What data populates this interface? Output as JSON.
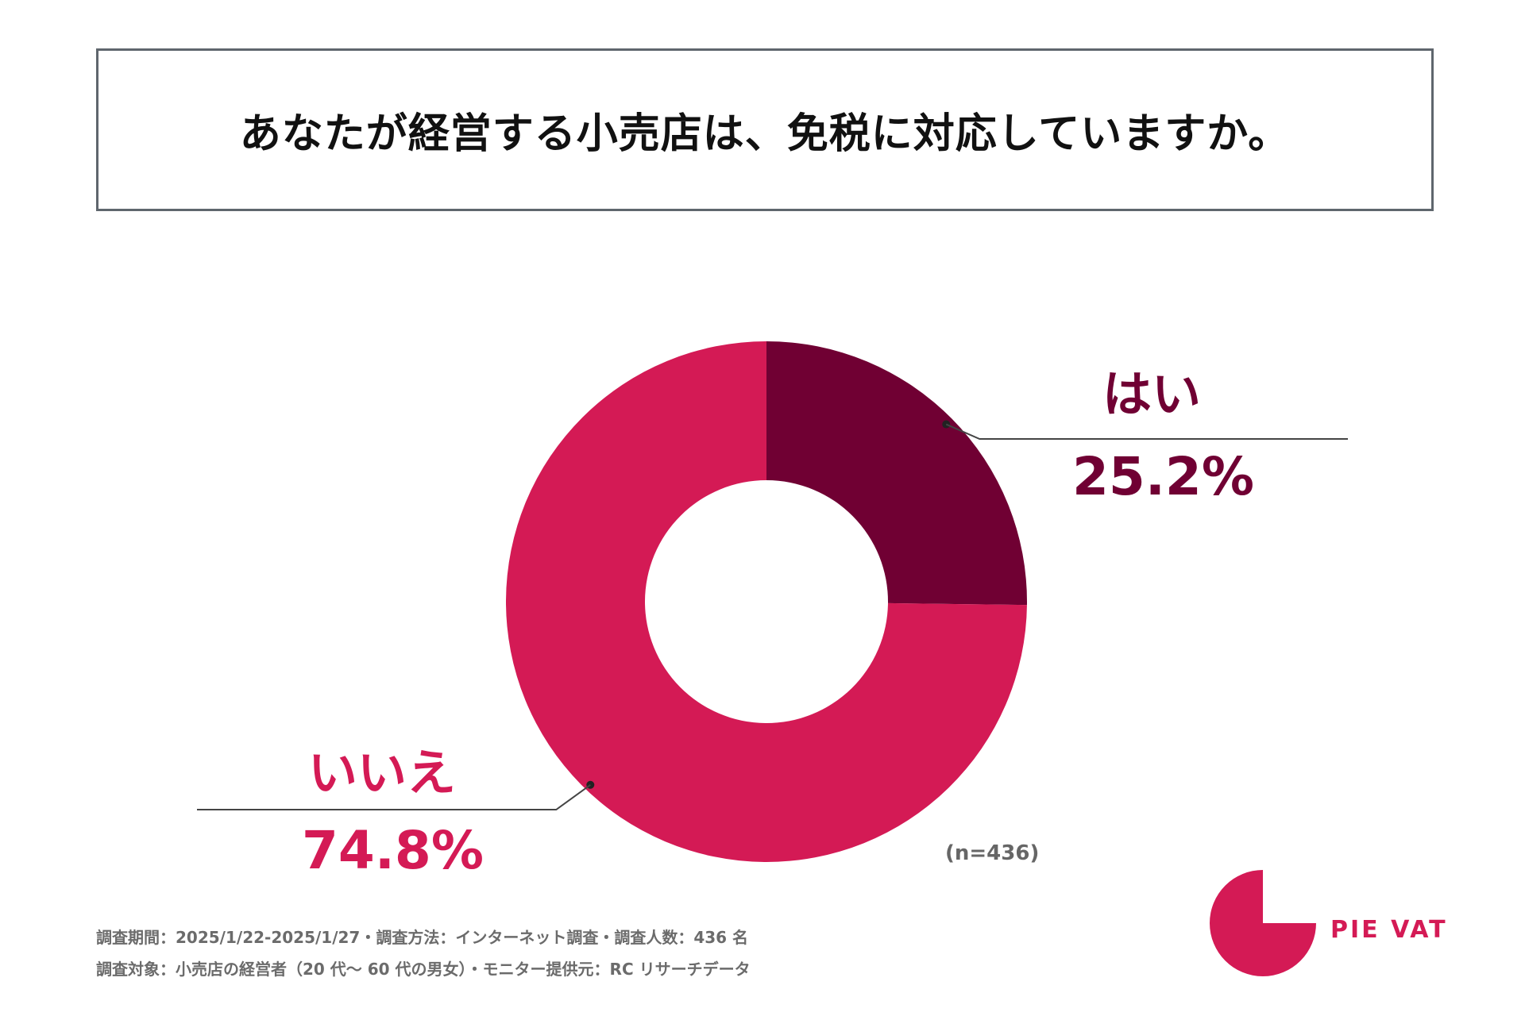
{
  "title": "あなたが経営する小売店は、免税に対応していますか。",
  "chart_data": {
    "type": "pie",
    "variant": "donut",
    "categories": [
      "はい",
      "いいえ"
    ],
    "values": [
      25.2,
      74.8
    ],
    "value_labels": [
      "25.2%",
      "74.8%"
    ],
    "colors": [
      "#700033",
      "#d41a55"
    ],
    "sample_note": "(n=436)"
  },
  "footnotes": {
    "line1": "調査期間：2025/1/22-2025/1/27・調査方法：インターネット調査・調査人数：436 名",
    "line2": "調査対象：小売店の経営者（20 代～ 60 代の男女）・モニター提供元：RC リサーチデータ"
  },
  "brand": {
    "name": "PIE VAT",
    "color": "#d41a55"
  }
}
